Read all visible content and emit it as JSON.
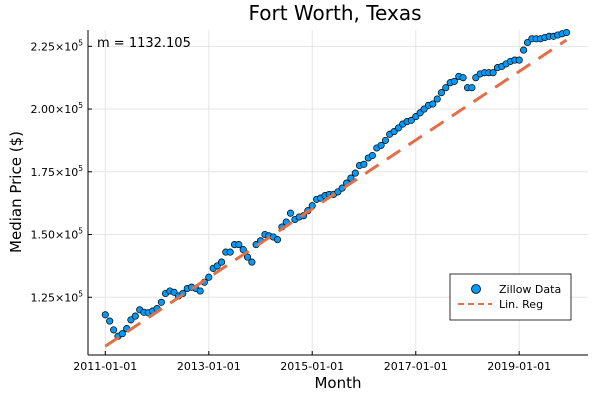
{
  "chart_data": {
    "type": "scatter",
    "title": "Fort Worth, Texas",
    "xlabel": "Month",
    "ylabel": "Median Price ($)",
    "annotation": "m = 1132.105",
    "x_ticks": [
      "2011-01-01",
      "2013-01-01",
      "2015-01-01",
      "2017-01-01",
      "2019-01-01"
    ],
    "y_ticks": [
      {
        "value": 125000,
        "mantissa": "1.25",
        "base": "×10",
        "exp": "5"
      },
      {
        "value": 150000,
        "mantissa": "1.50",
        "base": "×10",
        "exp": "5"
      },
      {
        "value": 175000,
        "mantissa": "1.75",
        "base": "×10",
        "exp": "5"
      },
      {
        "value": 200000,
        "mantissa": "2.00",
        "base": "×10",
        "exp": "5"
      },
      {
        "value": 225000,
        "mantissa": "2.25",
        "base": "×10",
        "exp": "5"
      }
    ],
    "xlim": [
      "2010-09-01",
      "2020-05-01"
    ],
    "ylim": [
      102000,
      231500
    ],
    "grid": true,
    "legend_position": "bottom-right",
    "series": [
      {
        "name": "Zillow Data",
        "kind": "scatter",
        "color": "#009AF9",
        "x": [
          "2011-01-01",
          "2011-02-01",
          "2011-03-01",
          "2011-04-01",
          "2011-05-01",
          "2011-06-01",
          "2011-07-01",
          "2011-08-01",
          "2011-09-01",
          "2011-10-01",
          "2011-11-01",
          "2011-12-01",
          "2012-01-01",
          "2012-02-01",
          "2012-03-01",
          "2012-04-01",
          "2012-05-01",
          "2012-06-01",
          "2012-07-01",
          "2012-08-01",
          "2012-09-01",
          "2012-10-01",
          "2012-11-01",
          "2012-12-01",
          "2013-01-01",
          "2013-02-01",
          "2013-03-01",
          "2013-04-01",
          "2013-05-01",
          "2013-06-01",
          "2013-07-01",
          "2013-08-01",
          "2013-09-01",
          "2013-10-01",
          "2013-11-01",
          "2013-12-01",
          "2014-01-01",
          "2014-02-01",
          "2014-03-01",
          "2014-04-01",
          "2014-05-01",
          "2014-06-01",
          "2014-07-01",
          "2014-08-01",
          "2014-09-01",
          "2014-10-01",
          "2014-11-01",
          "2014-12-01",
          "2015-01-01",
          "2015-02-01",
          "2015-03-01",
          "2015-04-01",
          "2015-05-01",
          "2015-06-01",
          "2015-07-01",
          "2015-08-01",
          "2015-09-01",
          "2015-10-01",
          "2015-11-01",
          "2015-12-01",
          "2016-01-01",
          "2016-02-01",
          "2016-03-01",
          "2016-04-01",
          "2016-05-01",
          "2016-06-01",
          "2016-07-01",
          "2016-08-01",
          "2016-09-01",
          "2016-10-01",
          "2016-11-01",
          "2016-12-01",
          "2017-01-01",
          "2017-02-01",
          "2017-03-01",
          "2017-04-01",
          "2017-05-01",
          "2017-06-01",
          "2017-07-01",
          "2017-08-01",
          "2017-09-01",
          "2017-10-01",
          "2017-11-01",
          "2017-12-01",
          "2018-01-01",
          "2018-02-01",
          "2018-03-01",
          "2018-04-01",
          "2018-05-01",
          "2018-06-01",
          "2018-07-01",
          "2018-08-01",
          "2018-09-01",
          "2018-10-01",
          "2018-11-01",
          "2018-12-01",
          "2019-01-01",
          "2019-02-01",
          "2019-03-01",
          "2019-04-01",
          "2019-05-01",
          "2019-06-01",
          "2019-07-01",
          "2019-08-01",
          "2019-09-01",
          "2019-10-01",
          "2019-11-01",
          "2019-12-01"
        ],
        "y": [
          118000,
          115500,
          112000,
          109500,
          110500,
          112500,
          116000,
          117500,
          120000,
          119000,
          118800,
          119500,
          120500,
          123000,
          126500,
          127500,
          127000,
          125500,
          126500,
          128500,
          129000,
          128500,
          127500,
          131000,
          133000,
          136500,
          137500,
          139000,
          143000,
          143000,
          146000,
          146000,
          144000,
          141000,
          139000,
          146000,
          147500,
          150000,
          149500,
          149000,
          148000,
          153000,
          155000,
          158500,
          156000,
          157000,
          157500,
          159500,
          161500,
          164000,
          164500,
          165500,
          166000,
          166000,
          167000,
          168500,
          170500,
          172500,
          174500,
          177500,
          178000,
          180500,
          181500,
          184500,
          185500,
          187500,
          190000,
          191000,
          192500,
          194000,
          195000,
          195500,
          197000,
          198500,
          200000,
          201500,
          202000,
          204000,
          206500,
          208500,
          210500,
          211000,
          213000,
          212500,
          208500,
          208500,
          212500,
          214000,
          214500,
          214500,
          214500,
          216500,
          217000,
          218000,
          219000,
          219500,
          219500,
          223500,
          226500,
          228000,
          228000,
          228000,
          228500,
          229000,
          229000,
          229500,
          230000,
          230500
        ]
      },
      {
        "name": "Lin. Reg",
        "kind": "line",
        "color": "#E26F46",
        "dashed": true,
        "x": [
          "2011-01-01",
          "2019-12-01"
        ],
        "y": [
          105500,
          227500
        ]
      }
    ]
  }
}
